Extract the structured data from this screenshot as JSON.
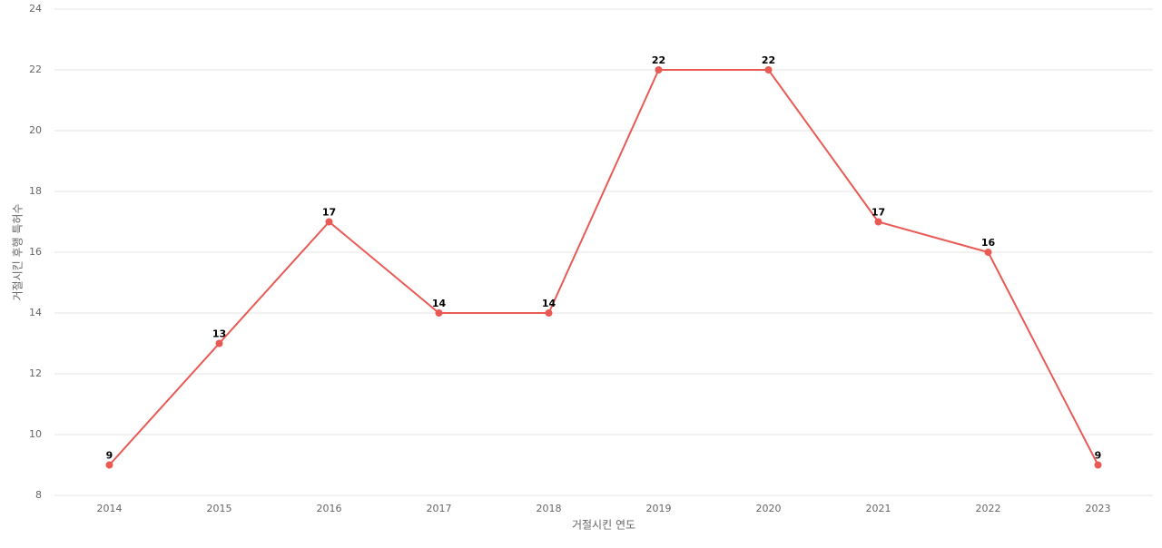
{
  "chart_data": {
    "type": "line",
    "x_label": "거절시킨 연도",
    "y_label": "거절시킨 후행 특허수",
    "categories": [
      "2014",
      "2015",
      "2016",
      "2017",
      "2018",
      "2019",
      "2020",
      "2021",
      "2022",
      "2023"
    ],
    "values": [
      9,
      13,
      17,
      14,
      14,
      22,
      22,
      17,
      16,
      9
    ],
    "color": "#e95a55",
    "ylim": [
      8,
      24
    ],
    "yticks": [
      8,
      10,
      12,
      14,
      16,
      18,
      20,
      22,
      24
    ],
    "grid": true
  }
}
